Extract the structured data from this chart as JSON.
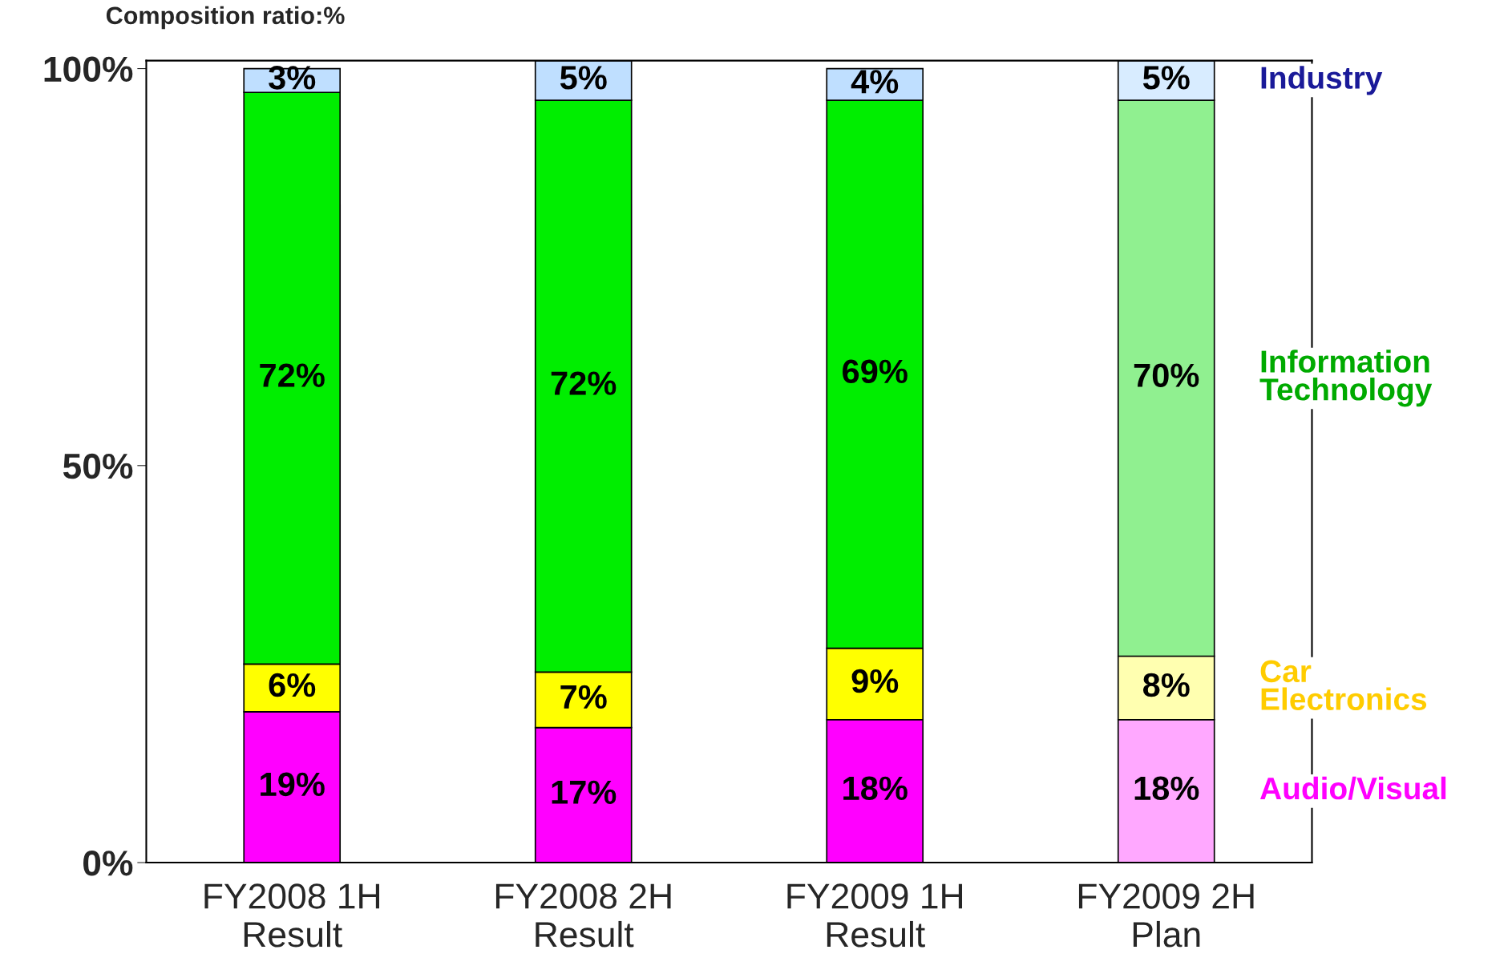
{
  "chart_data": {
    "type": "bar",
    "stacked": true,
    "ylabel": "Composition ratio:%",
    "categories": [
      "FY2008 1H\nResult",
      "FY2008 2H\nResult",
      "FY2009 1H\nResult",
      "FY2009 2H\nPlan"
    ],
    "series": [
      {
        "name": "Audio/Visual",
        "color": "#ff00ff",
        "colors": [
          "#ff00ff",
          "#ff00ff",
          "#ff00ff",
          "#ffa8ff"
        ],
        "values": [
          19,
          17,
          18,
          18
        ],
        "value_labels": [
          "19%",
          "17%",
          "18%",
          "18%"
        ]
      },
      {
        "name": "Car\nElectronics",
        "color": "#ffcc00",
        "colors": [
          "#ffff00",
          "#ffff00",
          "#ffff00",
          "#ffffb0"
        ],
        "values": [
          6,
          7,
          9,
          8
        ],
        "value_labels": [
          "6%",
          "7%",
          "9%",
          "8%"
        ]
      },
      {
        "name": "Information\nTechnology",
        "color": "#00aa00",
        "colors": [
          "#00ee00",
          "#00ee00",
          "#00ee00",
          "#90f090"
        ],
        "values": [
          72,
          72,
          69,
          70
        ],
        "value_labels": [
          "72%",
          "72%",
          "69%",
          "70%"
        ]
      },
      {
        "name": "Industry",
        "color": "#1a1a99",
        "colors": [
          "#bfdfff",
          "#bfdfff",
          "#bfdfff",
          "#d8ecff"
        ],
        "values": [
          3,
          5,
          4,
          5
        ],
        "value_labels": [
          "3%",
          "5%",
          "4%",
          "5%"
        ]
      }
    ],
    "legend": false,
    "grid": false,
    "ylim": [
      0,
      101
    ],
    "yticks": [
      {
        "value": 0,
        "label": "0%"
      },
      {
        "value": 50,
        "label": "50%"
      },
      {
        "value": 100,
        "label": "100%"
      }
    ]
  }
}
